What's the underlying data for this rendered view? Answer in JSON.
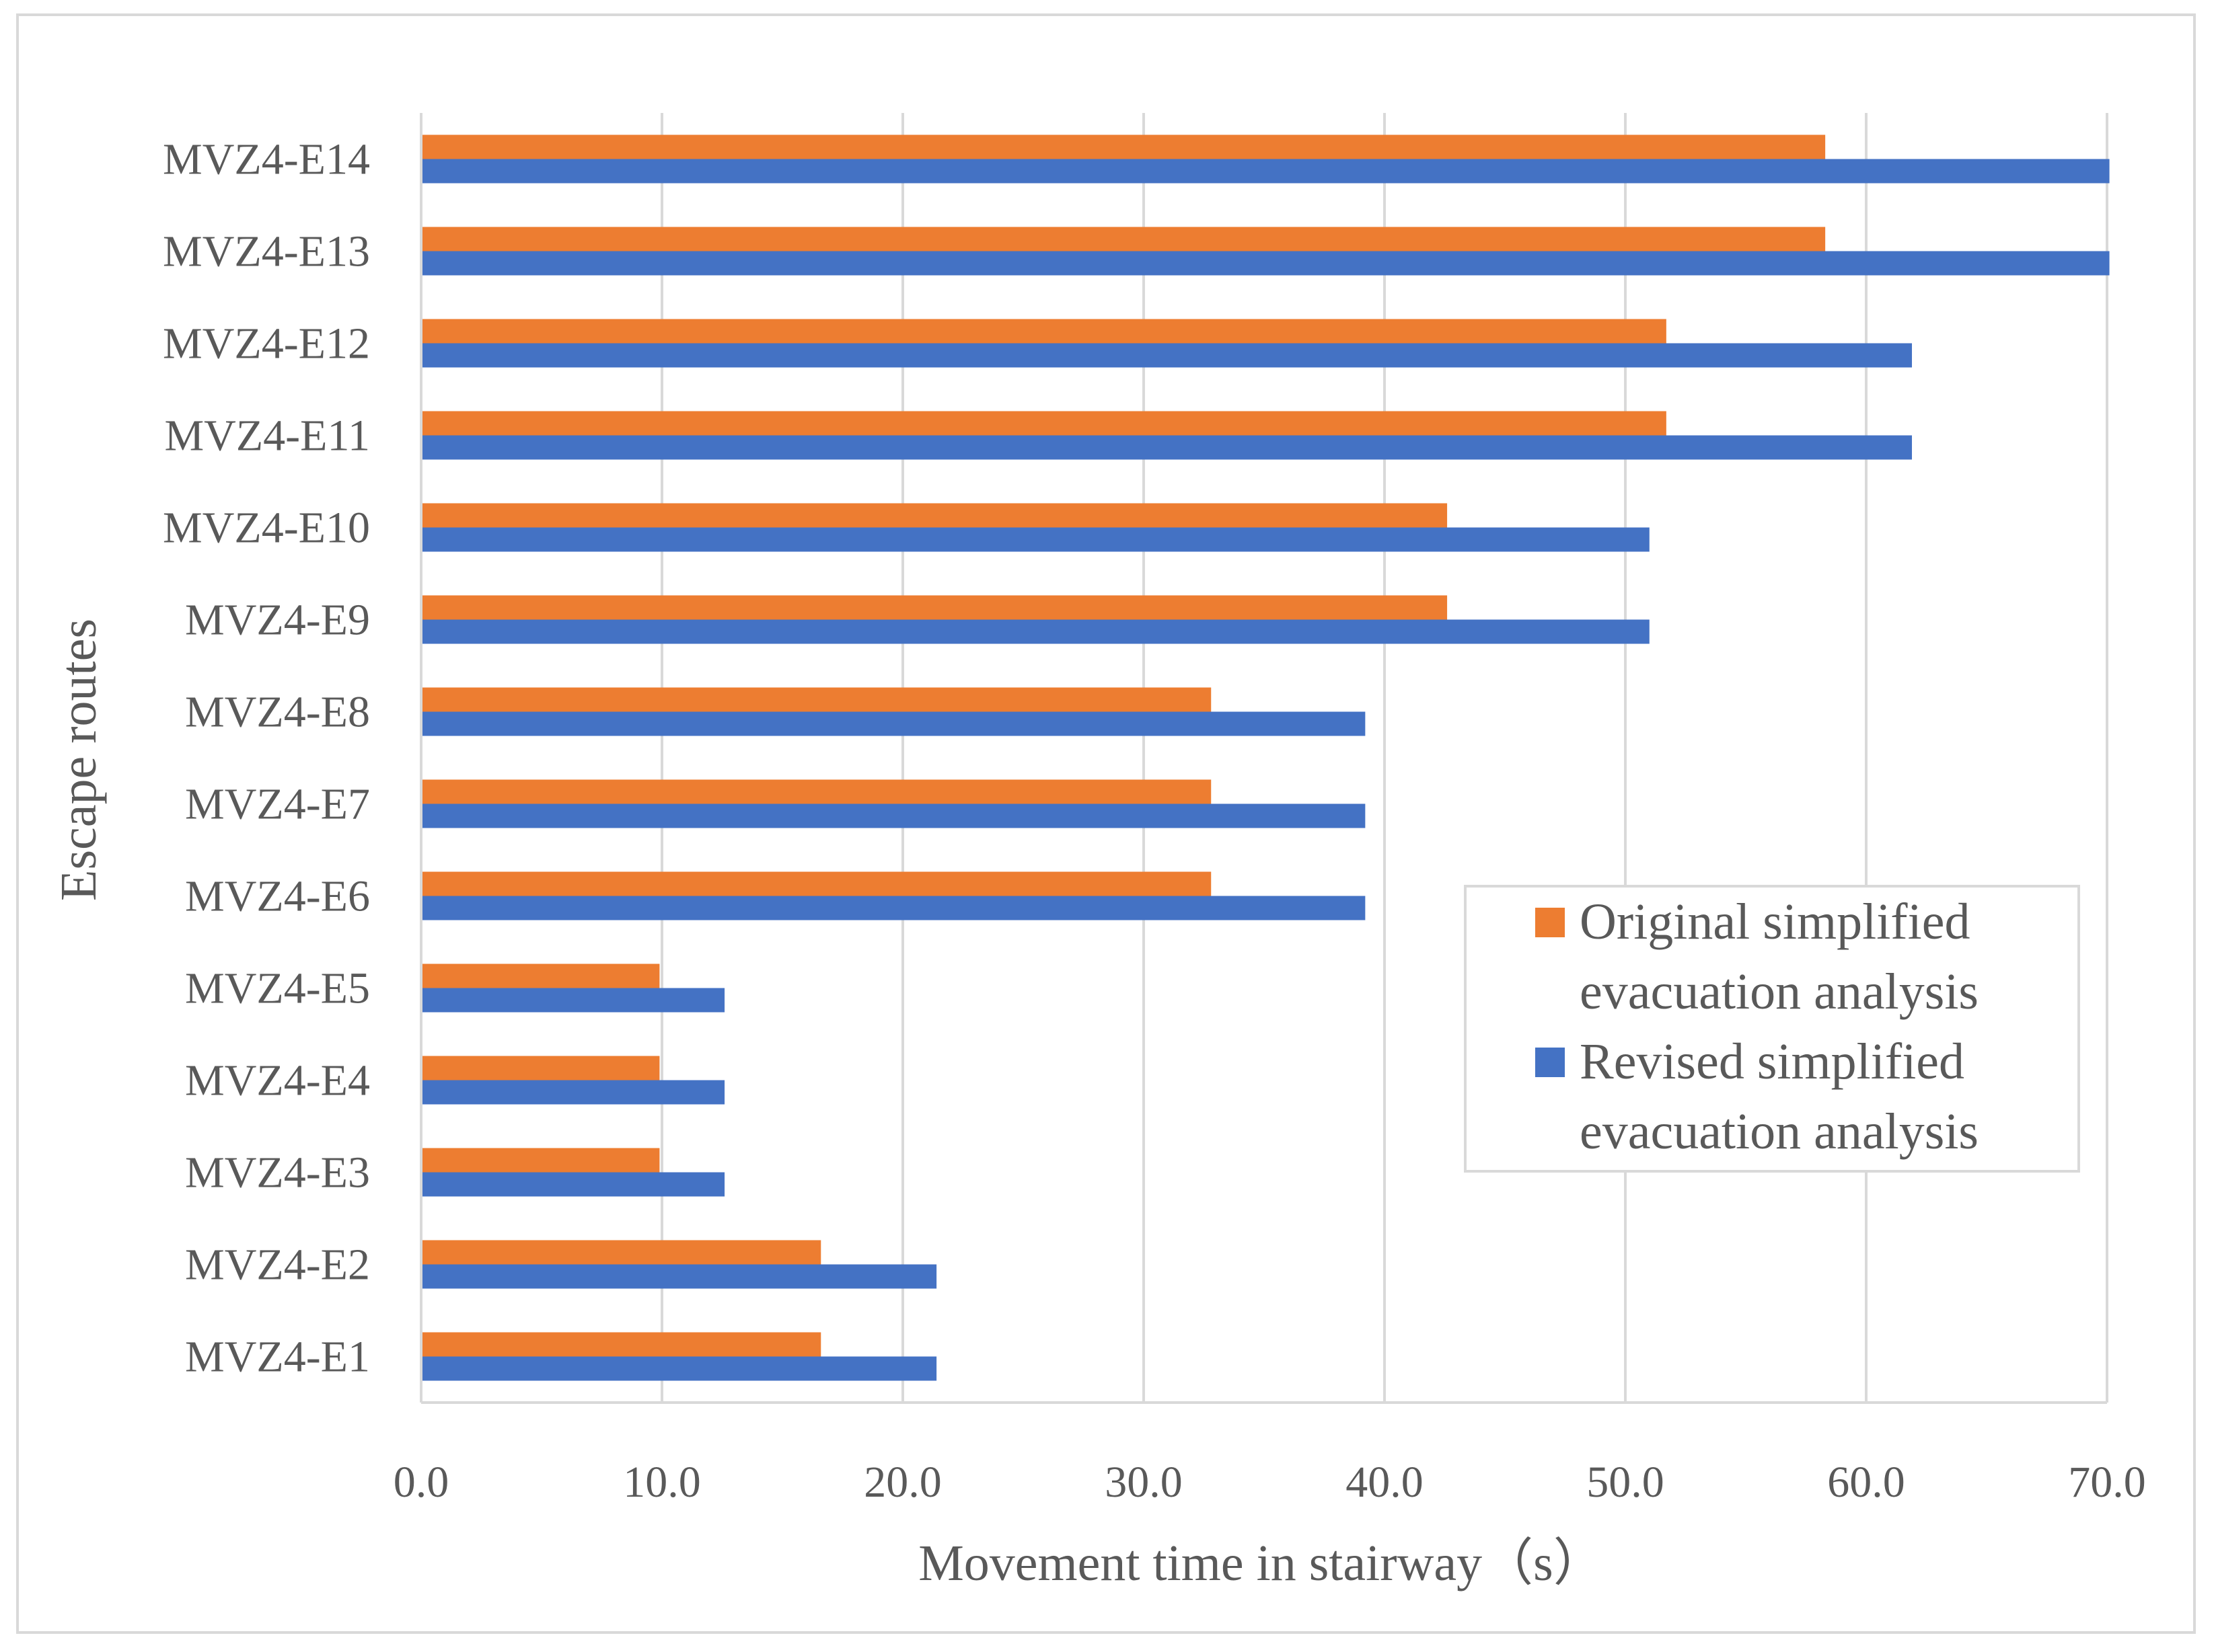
{
  "chart_data": {
    "type": "bar",
    "orientation": "horizontal",
    "title": "",
    "xlabel": "Movement time in stairway（s）",
    "ylabel": "Escape routes",
    "xlim": [
      0,
      70
    ],
    "xticks": [
      "0.0",
      "10.0",
      "20.0",
      "30.0",
      "40.0",
      "50.0",
      "60.0",
      "70.0"
    ],
    "grid": true,
    "legend_position": "right",
    "categories": [
      "MVZ4-E1",
      "MVZ4-E2",
      "MVZ4-E3",
      "MVZ4-E4",
      "MVZ4-E5",
      "MVZ4-E6",
      "MVZ4-E7",
      "MVZ4-E8",
      "MVZ4-E9",
      "MVZ4-E10",
      "MVZ4-E11",
      "MVZ4-E12",
      "MVZ4-E13",
      "MVZ4-E14"
    ],
    "series": [
      {
        "name": "Original simplified evacuation analysis",
        "legend_lines": [
          "Original simplified",
          "evacuation analysis"
        ],
        "color": "#ed7d31",
        "values": [
          16.6,
          16.6,
          9.9,
          9.9,
          9.9,
          32.8,
          32.8,
          32.8,
          42.6,
          42.6,
          51.7,
          51.7,
          58.3,
          58.3
        ]
      },
      {
        "name": "Revised simplified evacuation analysis",
        "legend_lines": [
          "Revised simplified",
          "evacuation analysis"
        ],
        "color": "#4472c4",
        "values": [
          21.4,
          21.4,
          12.6,
          12.6,
          12.6,
          39.2,
          39.2,
          39.2,
          51.0,
          51.0,
          61.9,
          61.9,
          70.1,
          70.1
        ]
      }
    ]
  }
}
